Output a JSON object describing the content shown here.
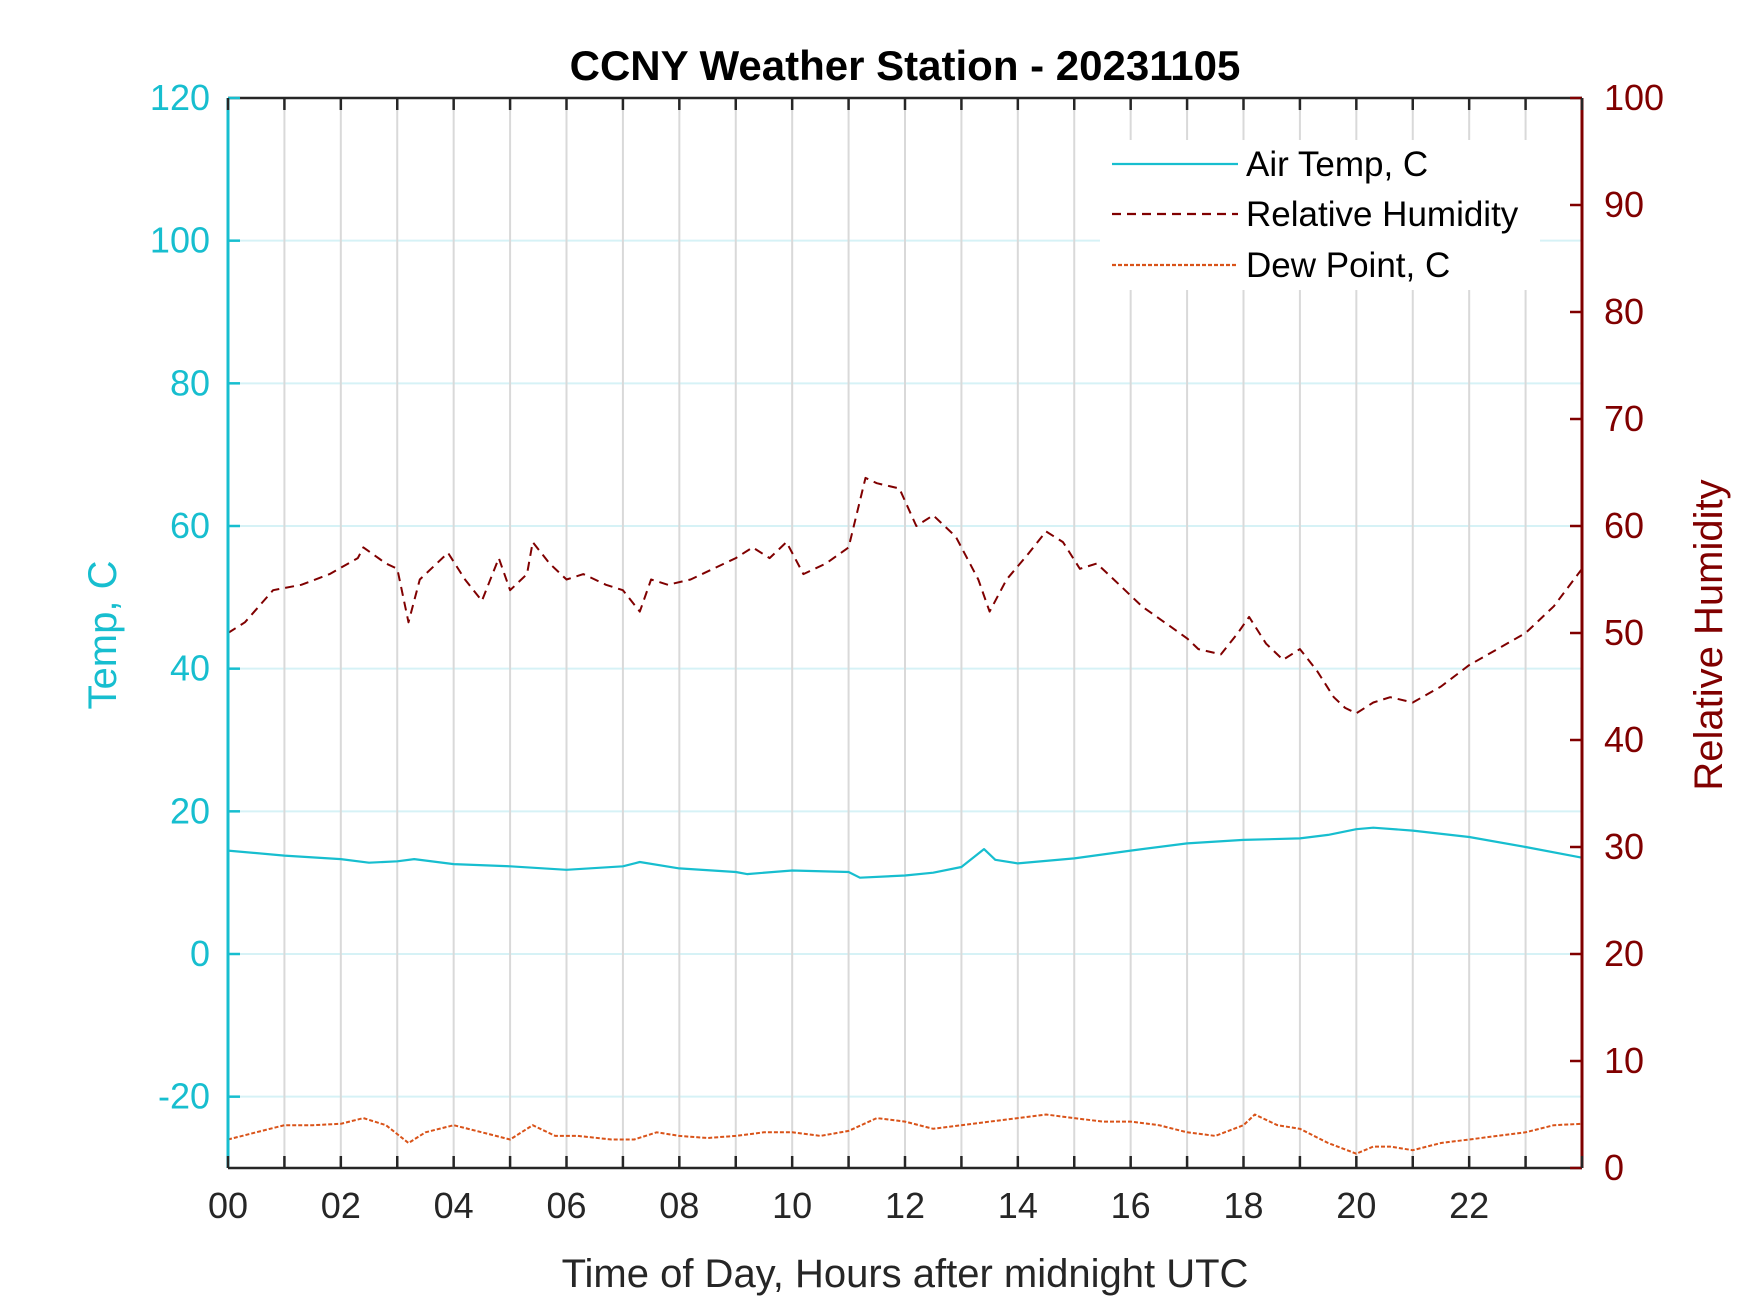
{
  "chart_data": {
    "type": "line",
    "title": "CCNY Weather Station - 20231105",
    "xlabel": "Time of Day, Hours after midnight UTC",
    "ylabel_left": "Temp, C",
    "ylabel_right": "Relative Humidity",
    "xlim": [
      0,
      24
    ],
    "ylim_left": [
      -30,
      120
    ],
    "ylim_right": [
      0,
      100
    ],
    "x_ticks": [
      0,
      2,
      4,
      6,
      8,
      10,
      12,
      14,
      16,
      18,
      20,
      22
    ],
    "x_tick_labels": [
      "00",
      "02",
      "04",
      "06",
      "08",
      "10",
      "12",
      "14",
      "16",
      "18",
      "20",
      "22"
    ],
    "y_left_ticks": [
      -20,
      0,
      20,
      40,
      60,
      80,
      100,
      120
    ],
    "y_left_tick_labels": [
      "-20",
      "0",
      "20",
      "40",
      "60",
      "80",
      "100",
      "120"
    ],
    "y_right_ticks": [
      0,
      10,
      20,
      30,
      40,
      50,
      60,
      70,
      80,
      90,
      100
    ],
    "y_right_tick_labels": [
      "0",
      "10",
      "20",
      "30",
      "40",
      "50",
      "60",
      "70",
      "80",
      "90",
      "100"
    ],
    "grid": "vertical every 1 hour, horizontal every 20 C",
    "legend_placement": "top-right",
    "colors": {
      "left_axis": "#17becf",
      "right_axis": "#800000",
      "dew": "#d95319",
      "grid_v": "#d9d9d9",
      "grid_h": "#d6f2f6"
    },
    "series": [
      {
        "name": "Air Temp, C",
        "axis": "left",
        "style": "solid",
        "color": "#17becf",
        "x": [
          0,
          1,
          2,
          2.5,
          3,
          3.3,
          4,
          5,
          6,
          7,
          7.3,
          8,
          9,
          9.2,
          10,
          11,
          11.2,
          12,
          12.5,
          13,
          13.4,
          13.6,
          14,
          15,
          16,
          17,
          18,
          19,
          19.5,
          20,
          20.3,
          21,
          22,
          23,
          24
        ],
        "values": [
          14.5,
          13.8,
          13.3,
          12.8,
          13.0,
          13.3,
          12.6,
          12.3,
          11.8,
          12.3,
          12.9,
          12.0,
          11.5,
          11.2,
          11.7,
          11.5,
          10.7,
          11.0,
          11.4,
          12.2,
          14.7,
          13.2,
          12.7,
          13.4,
          14.5,
          15.5,
          16.0,
          16.2,
          16.7,
          17.5,
          17.7,
          17.3,
          16.4,
          15.0,
          13.5
        ]
      },
      {
        "name": "Relative Humidity",
        "axis": "right",
        "style": "dashed",
        "color": "#800000",
        "x": [
          0,
          0.3,
          0.8,
          1.3,
          1.8,
          2.3,
          2.4,
          2.8,
          3.0,
          3.2,
          3.4,
          3.6,
          3.9,
          4.2,
          4.5,
          4.8,
          5.0,
          5.3,
          5.4,
          5.7,
          6.0,
          6.3,
          6.7,
          7.0,
          7.3,
          7.5,
          7.8,
          8.2,
          8.6,
          9.0,
          9.3,
          9.6,
          9.9,
          10.2,
          10.6,
          11.0,
          11.3,
          11.5,
          11.9,
          12.2,
          12.5,
          12.9,
          13.3,
          13.5,
          13.8,
          14.2,
          14.5,
          14.8,
          15.1,
          15.4,
          15.8,
          16.2,
          16.6,
          17.0,
          17.2,
          17.6,
          17.9,
          18.1,
          18.4,
          18.7,
          19.0,
          19.3,
          19.6,
          19.8,
          20.0,
          20.3,
          20.6,
          21.0,
          21.5,
          22.0,
          22.5,
          23.0,
          23.5,
          24.0
        ],
        "values": [
          50.0,
          51.0,
          54.0,
          54.5,
          55.5,
          57.0,
          58.0,
          56.5,
          56.0,
          51.0,
          55.0,
          56.0,
          57.5,
          55.0,
          53.0,
          57.0,
          54.0,
          55.5,
          58.5,
          56.5,
          55.0,
          55.5,
          54.5,
          54.0,
          52.0,
          55.0,
          54.5,
          55.0,
          56.0,
          57.0,
          58.0,
          57.0,
          58.5,
          55.5,
          56.5,
          58.0,
          64.5,
          64.0,
          63.5,
          60.0,
          61.0,
          59.0,
          55.0,
          52.0,
          55.0,
          57.5,
          59.5,
          58.5,
          56.0,
          56.5,
          54.5,
          52.5,
          51.0,
          49.5,
          48.5,
          48.0,
          50.0,
          51.5,
          49.0,
          47.5,
          48.5,
          46.5,
          44.0,
          43.0,
          42.5,
          43.5,
          44.0,
          43.5,
          45.0,
          47.0,
          48.5,
          50.0,
          52.5,
          56.0
        ]
      },
      {
        "name": "Dew Point, C",
        "axis": "left",
        "style": "dash-dot",
        "color": "#d95319",
        "x": [
          0,
          0.5,
          1,
          1.5,
          2,
          2.4,
          2.8,
          3.2,
          3.5,
          4.0,
          4.5,
          5.0,
          5.4,
          5.8,
          6.2,
          6.8,
          7.2,
          7.6,
          8.0,
          8.5,
          9.0,
          9.5,
          10.0,
          10.5,
          11.0,
          11.5,
          12.0,
          12.5,
          13.0,
          13.5,
          14.0,
          14.5,
          15.0,
          15.5,
          16.0,
          16.5,
          17.0,
          17.5,
          18.0,
          18.2,
          18.6,
          19.0,
          19.5,
          20.0,
          20.3,
          20.6,
          21.0,
          21.5,
          22.0,
          22.5,
          23.0,
          23.5,
          24.0
        ],
        "values": [
          -26.0,
          -25.0,
          -24.0,
          -24.0,
          -23.8,
          -23.0,
          -24.0,
          -26.5,
          -25.0,
          -24.0,
          -25.0,
          -26.0,
          -24.0,
          -25.5,
          -25.5,
          -26.0,
          -26.0,
          -25.0,
          -25.5,
          -25.8,
          -25.5,
          -25.0,
          -25.0,
          -25.5,
          -24.8,
          -23.0,
          -23.5,
          -24.5,
          -24.0,
          -23.5,
          -23.0,
          -22.5,
          -23.0,
          -23.5,
          -23.5,
          -24.0,
          -25.0,
          -25.5,
          -24.0,
          -22.5,
          -24.0,
          -24.5,
          -26.5,
          -28.0,
          -27.0,
          -27.0,
          -27.5,
          -26.5,
          -26.0,
          -25.5,
          -25.0,
          -24.0,
          -23.8
        ]
      }
    ]
  }
}
